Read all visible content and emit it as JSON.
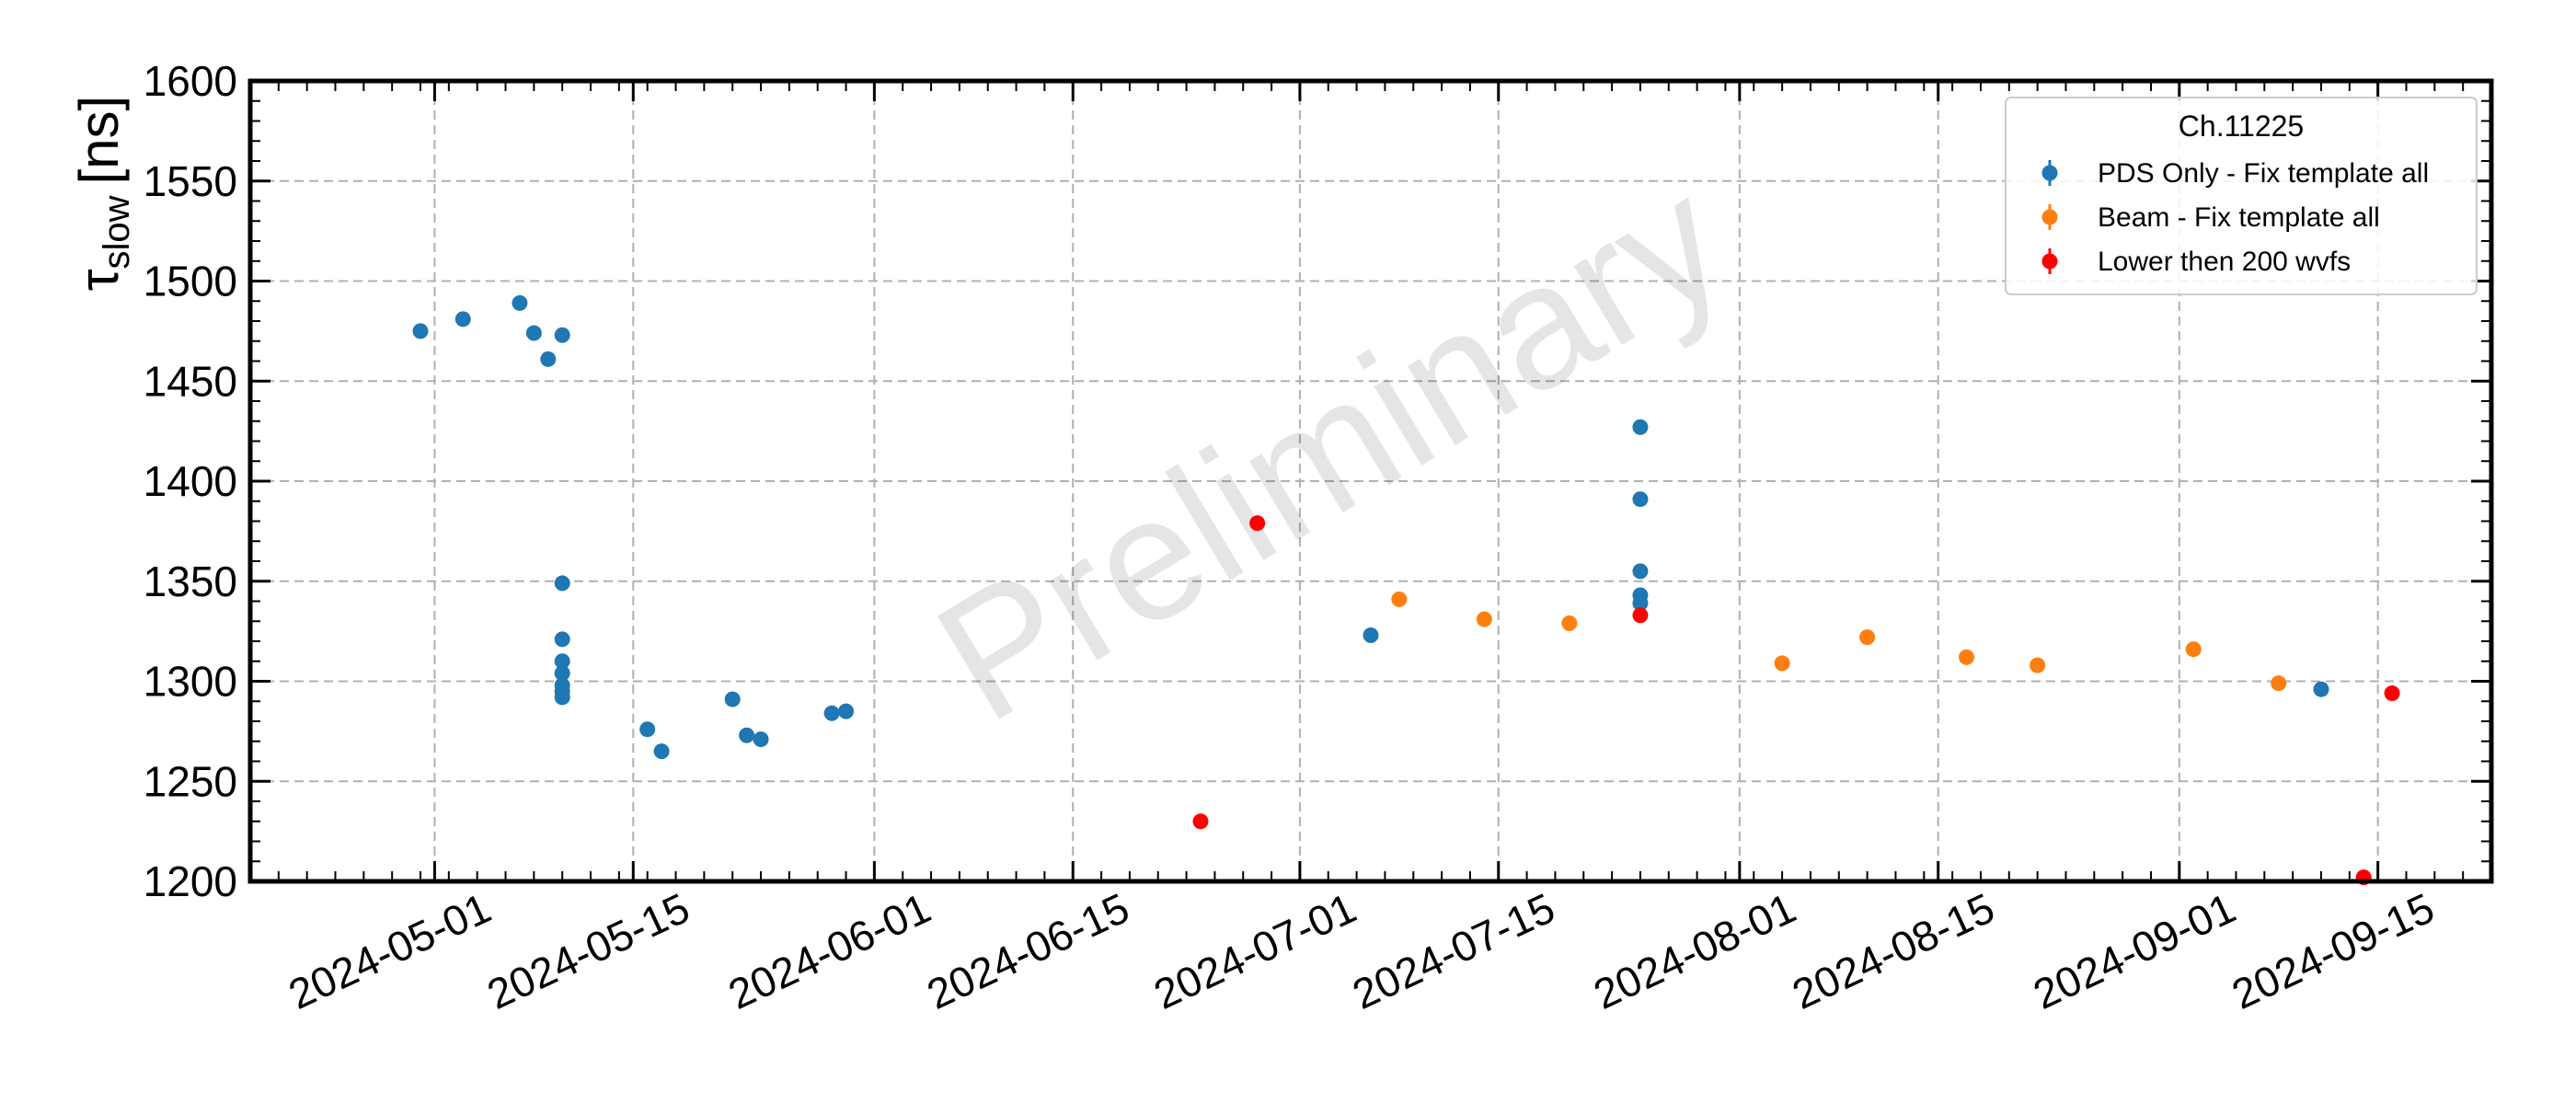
{
  "chart_data": {
    "type": "scatter",
    "ylabel": {
      "symbol": "τ",
      "subscript": "slow",
      "unit": "[ns]"
    },
    "xlabel": "",
    "ylim": [
      1200,
      1600
    ],
    "yticks": [
      1200,
      1250,
      1300,
      1350,
      1400,
      1450,
      1500,
      1550,
      1600
    ],
    "xlim": [
      "2024-04-18",
      "2024-09-23"
    ],
    "xticks": [
      "2024-05-01",
      "2024-05-15",
      "2024-06-01",
      "2024-06-15",
      "2024-07-01",
      "2024-07-15",
      "2024-08-01",
      "2024-08-15",
      "2024-09-01",
      "2024-09-15"
    ],
    "grid": true,
    "legend": {
      "title": "Ch.11225",
      "placement": "top-right",
      "entries": [
        {
          "label": "PDS Only - Fix template all",
          "color": "#1f77b4"
        },
        {
          "label": "Beam - Fix template all",
          "color": "#ff7f0e"
        },
        {
          "label": "Lower then 200 wvfs",
          "color": "#ff0000"
        }
      ]
    },
    "watermark": "Preliminary",
    "series": [
      {
        "name": "PDS Only - Fix template all",
        "color": "#1f77b4",
        "points": [
          {
            "x": "2024-04-30",
            "y": 1475
          },
          {
            "x": "2024-05-03",
            "y": 1481
          },
          {
            "x": "2024-05-07",
            "y": 1489
          },
          {
            "x": "2024-05-08",
            "y": 1474
          },
          {
            "x": "2024-05-09",
            "y": 1461
          },
          {
            "x": "2024-05-10",
            "y": 1473
          },
          {
            "x": "2024-05-10",
            "y": 1349
          },
          {
            "x": "2024-05-10",
            "y": 1321
          },
          {
            "x": "2024-05-10",
            "y": 1310
          },
          {
            "x": "2024-05-10",
            "y": 1304
          },
          {
            "x": "2024-05-10",
            "y": 1298
          },
          {
            "x": "2024-05-10",
            "y": 1295
          },
          {
            "x": "2024-05-10",
            "y": 1292
          },
          {
            "x": "2024-05-16",
            "y": 1276
          },
          {
            "x": "2024-05-17",
            "y": 1265
          },
          {
            "x": "2024-05-22",
            "y": 1291
          },
          {
            "x": "2024-05-23",
            "y": 1273
          },
          {
            "x": "2024-05-24",
            "y": 1271
          },
          {
            "x": "2024-05-29",
            "y": 1284
          },
          {
            "x": "2024-05-30",
            "y": 1285
          },
          {
            "x": "2024-07-06",
            "y": 1323
          },
          {
            "x": "2024-07-25",
            "y": 1427
          },
          {
            "x": "2024-07-25",
            "y": 1391
          },
          {
            "x": "2024-07-25",
            "y": 1355
          },
          {
            "x": "2024-07-25",
            "y": 1343
          },
          {
            "x": "2024-07-25",
            "y": 1339
          },
          {
            "x": "2024-09-11",
            "y": 1296
          }
        ]
      },
      {
        "name": "Beam - Fix template all",
        "color": "#ff7f0e",
        "points": [
          {
            "x": "2024-07-08",
            "y": 1341
          },
          {
            "x": "2024-07-14",
            "y": 1331
          },
          {
            "x": "2024-07-20",
            "y": 1329
          },
          {
            "x": "2024-08-04",
            "y": 1309
          },
          {
            "x": "2024-08-10",
            "y": 1322
          },
          {
            "x": "2024-08-17",
            "y": 1312
          },
          {
            "x": "2024-08-22",
            "y": 1308
          },
          {
            "x": "2024-09-02",
            "y": 1316
          },
          {
            "x": "2024-09-08",
            "y": 1299
          }
        ]
      },
      {
        "name": "Lower then 200 wvfs",
        "color": "#ff0000",
        "points": [
          {
            "x": "2024-06-24",
            "y": 1230
          },
          {
            "x": "2024-06-28",
            "y": 1379
          },
          {
            "x": "2024-07-25",
            "y": 1333
          },
          {
            "x": "2024-09-14",
            "y": 1202
          },
          {
            "x": "2024-09-16",
            "y": 1294
          }
        ]
      }
    ]
  }
}
